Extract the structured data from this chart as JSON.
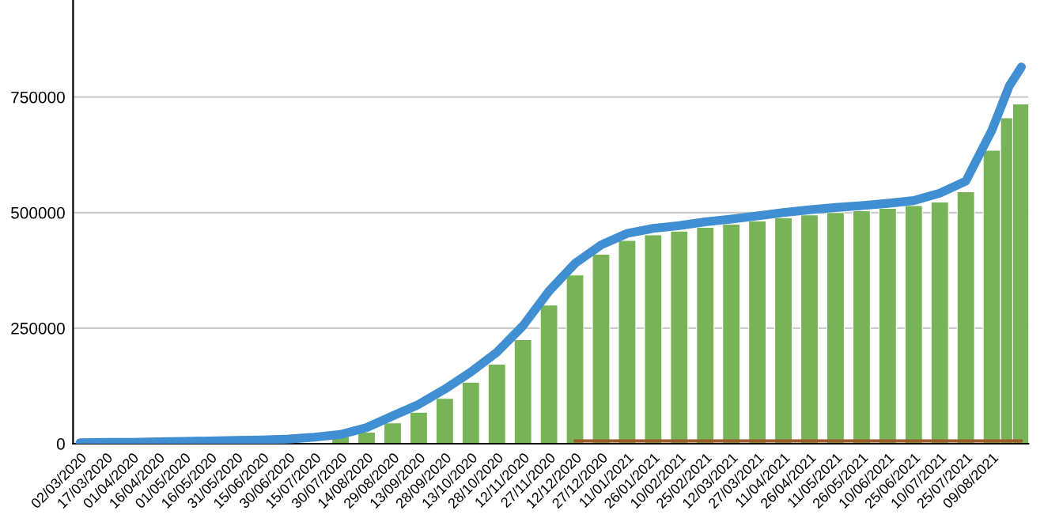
{
  "chart_data": {
    "type": "bar",
    "x": [
      "2020-03-02",
      "2020-03-17",
      "2020-04-01",
      "2020-04-16",
      "2020-05-01",
      "2020-05-16",
      "2020-05-31",
      "2020-06-15",
      "2020-06-30",
      "2020-07-15",
      "2020-07-30",
      "2020-08-14",
      "2020-08-29",
      "2020-09-13",
      "2020-09-28",
      "2020-10-13",
      "2020-10-28",
      "2020-11-12",
      "2020-11-27",
      "2020-12-12",
      "2020-12-27",
      "2021-01-11",
      "2021-01-26",
      "2021-02-10",
      "2021-02-25",
      "2021-03-12",
      "2021-03-27",
      "2021-04-11",
      "2021-04-26",
      "2021-05-11",
      "2021-05-26",
      "2021-06-10",
      "2021-06-25",
      "2021-07-10",
      "2021-07-25",
      "2021-08-09",
      "2021-08-19",
      "2021-08-26"
    ],
    "series": [
      {
        "color": "#79b357",
        "values": [
          null,
          null,
          null,
          null,
          null,
          null,
          null,
          null,
          null,
          null,
          15000,
          25000,
          45000,
          68000,
          98000,
          133000,
          172000,
          225000,
          300000,
          365000,
          410000,
          440000,
          452000,
          460000,
          468000,
          475000,
          482000,
          489000,
          495000,
          500000,
          504000,
          509000,
          515000,
          523000,
          545000,
          635000,
          705000,
          735000
        ]
      },
      {
        "type": "line",
        "color": "#3f8fd2",
        "values": [
          2000,
          3000,
          3000,
          4000,
          5000,
          6000,
          7000,
          8000,
          10000,
          14000,
          20000,
          35000,
          60000,
          85000,
          118000,
          155000,
          198000,
          255000,
          330000,
          390000,
          430000,
          455000,
          466000,
          472000,
          480000,
          486000,
          493000,
          500000,
          506000,
          511000,
          515000,
          520000,
          526000,
          542000,
          568000,
          678000,
          774000,
          815000
        ]
      },
      {
        "type": "line",
        "color": "#9c5b2a",
        "x": [
          "2020-12-12",
          "2021-03-12",
          "2021-06-10",
          "2021-08-26"
        ],
        "values": [
          6000,
          6000,
          6000,
          6000
        ]
      }
    ],
    "xlim": [
      "2020-02-27",
      "2021-08-30"
    ],
    "xticks": [
      {
        "value": "2020-03-02",
        "label": "02/03/2020"
      },
      {
        "value": "2020-03-17",
        "label": "17/03/2020"
      },
      {
        "value": "2020-04-01",
        "label": "01/04/2020"
      },
      {
        "value": "2020-04-16",
        "label": "16/04/2020"
      },
      {
        "value": "2020-05-01",
        "label": "01/05/2020"
      },
      {
        "value": "2020-05-16",
        "label": "16/05/2020"
      },
      {
        "value": "2020-05-31",
        "label": "31/05/2020"
      },
      {
        "value": "2020-06-15",
        "label": "15/06/2020"
      },
      {
        "value": "2020-06-30",
        "label": "30/06/2020"
      },
      {
        "value": "2020-07-15",
        "label": "15/07/2020"
      },
      {
        "value": "2020-07-30",
        "label": "30/07/2020"
      },
      {
        "value": "2020-08-14",
        "label": "14/08/2020"
      },
      {
        "value": "2020-08-29",
        "label": "29/08/2020"
      },
      {
        "value": "2020-09-13",
        "label": "13/09/2020"
      },
      {
        "value": "2020-09-28",
        "label": "28/09/2020"
      },
      {
        "value": "2020-10-13",
        "label": "13/10/2020"
      },
      {
        "value": "2020-10-28",
        "label": "28/10/2020"
      },
      {
        "value": "2020-11-12",
        "label": "12/11/2020"
      },
      {
        "value": "2020-11-27",
        "label": "27/11/2020"
      },
      {
        "value": "2020-12-12",
        "label": "12/12/2020"
      },
      {
        "value": "2020-12-27",
        "label": "27/12/2020"
      },
      {
        "value": "2021-01-11",
        "label": "11/01/2021"
      },
      {
        "value": "2021-01-26",
        "label": "26/01/2021"
      },
      {
        "value": "2021-02-10",
        "label": "10/02/2021"
      },
      {
        "value": "2021-02-25",
        "label": "25/02/2021"
      },
      {
        "value": "2021-03-12",
        "label": "12/03/2021"
      },
      {
        "value": "2021-03-27",
        "label": "27/03/2021"
      },
      {
        "value": "2021-04-11",
        "label": "11/04/2021"
      },
      {
        "value": "2021-04-26",
        "label": "26/04/2021"
      },
      {
        "value": "2021-05-11",
        "label": "11/05/2021"
      },
      {
        "value": "2021-05-26",
        "label": "26/05/2021"
      },
      {
        "value": "2021-06-10",
        "label": "10/06/2021"
      },
      {
        "value": "2021-06-25",
        "label": "25/06/2021"
      },
      {
        "value": "2021-07-10",
        "label": "10/07/2021"
      },
      {
        "value": "2021-07-25",
        "label": "25/07/2021"
      },
      {
        "value": "2021-08-09",
        "label": "09/08/2021"
      }
    ],
    "ylim": [
      0,
      960000
    ],
    "yticks": [
      0,
      250000,
      500000,
      750000
    ],
    "grid": "y",
    "legend": false,
    "marker": "none",
    "line_style": "solid"
  }
}
